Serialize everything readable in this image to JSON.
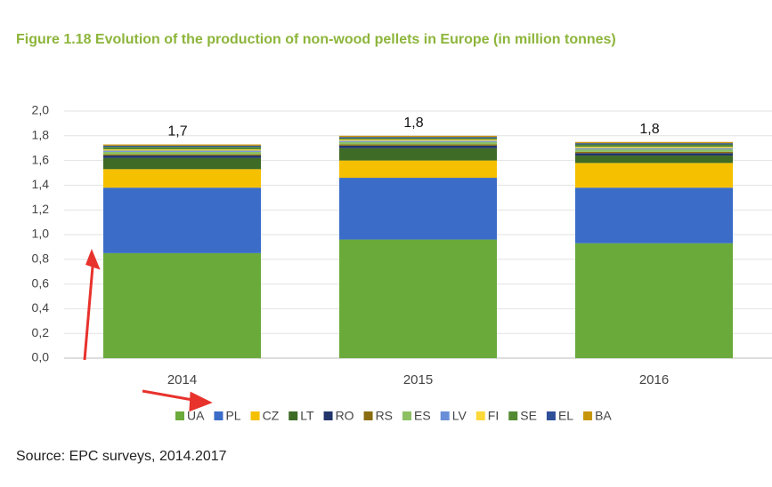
{
  "chart_data": {
    "type": "stacked_bar",
    "title": "Figure 1.18 Evolution of the production of non-wood pellets in Europe (in million tonnes)",
    "source": "Source: EPC surveys, 2014.2017",
    "categories": [
      "2014",
      "2015",
      "2016"
    ],
    "totals": [
      1.7,
      1.8,
      1.8
    ],
    "value_labels": [
      "1,7",
      "1,8",
      "1,8"
    ],
    "series": [
      {
        "name": "UA",
        "color": "#6aaa3a",
        "values": [
          0.85,
          0.96,
          0.93
        ]
      },
      {
        "name": "PL",
        "color": "#3a6cc8",
        "values": [
          0.53,
          0.5,
          0.45
        ]
      },
      {
        "name": "CZ",
        "color": "#f5c000",
        "values": [
          0.15,
          0.14,
          0.2
        ]
      },
      {
        "name": "LT",
        "color": "#3e6b26",
        "values": [
          0.09,
          0.1,
          0.06
        ]
      },
      {
        "name": "RO",
        "color": "#22356b",
        "values": [
          0.02,
          0.02,
          0.02
        ]
      },
      {
        "name": "RS",
        "color": "#8a6d10",
        "values": [
          0.01,
          0.01,
          0.01
        ]
      },
      {
        "name": "ES",
        "color": "#8cc063",
        "values": [
          0.02,
          0.02,
          0.02
        ]
      },
      {
        "name": "LV",
        "color": "#6a8fd8",
        "values": [
          0.01,
          0.01,
          0.01
        ]
      },
      {
        "name": "FI",
        "color": "#ffd83a",
        "values": [
          0.01,
          0.01,
          0.01
        ]
      },
      {
        "name": "SE",
        "color": "#548a33",
        "values": [
          0.02,
          0.01,
          0.02
        ]
      },
      {
        "name": "EL",
        "color": "#2f4f99",
        "values": [
          0.01,
          0.01,
          0.01
        ]
      },
      {
        "name": "BA",
        "color": "#c8960a",
        "values": [
          0.01,
          0.01,
          0.01
        ]
      }
    ],
    "ylim": [
      0,
      2.0
    ],
    "yticks": [
      {
        "value": 0,
        "label": "0,0"
      },
      {
        "value": 0.2,
        "label": "0,2"
      },
      {
        "value": 0.4,
        "label": "0,4"
      },
      {
        "value": 0.6,
        "label": "0,6"
      },
      {
        "value": 0.8,
        "label": "0,8"
      },
      {
        "value": 1.0,
        "label": "1,0"
      },
      {
        "value": 1.2,
        "label": "1,2"
      },
      {
        "value": 1.4,
        "label": "1,4"
      },
      {
        "value": 1.6,
        "label": "1,6"
      },
      {
        "value": 1.8,
        "label": "1,8"
      },
      {
        "value": 2.0,
        "label": "2,0"
      }
    ],
    "grid": true
  }
}
